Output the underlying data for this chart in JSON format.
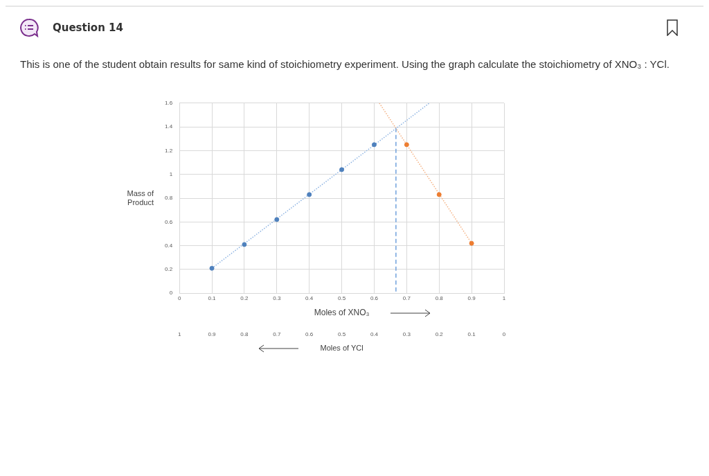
{
  "chart_data": {
    "type": "scatter",
    "title": "Question 14",
    "subtitle": "This is one of the student obtain results for same kind of stoichiometry experiment. Using the graph calculate the stoichiometry of XNO₃ : YCl.",
    "xlabel": "Moles of XNO₃",
    "x2label": "Moles of YCl",
    "ylabel": "Mass of Product",
    "xlim": [
      0,
      1
    ],
    "xticks": [
      0,
      0.1,
      0.2,
      0.3,
      0.4,
      0.5,
      0.6,
      0.7,
      0.8,
      0.9,
      1
    ],
    "x2lim": [
      1,
      0
    ],
    "x2ticks": [
      1,
      0.9,
      0.8,
      0.7,
      0.6,
      0.5,
      0.4,
      0.3,
      0.2,
      0.1,
      0
    ],
    "ylim": [
      0,
      1.6
    ],
    "yticks": [
      0,
      0.2,
      0.4,
      0.6,
      0.8,
      1,
      1.2,
      1.4,
      1.6
    ],
    "grid": true,
    "legend": false,
    "series": [
      {
        "type": "scatter",
        "color": "#4f81bd",
        "marker": "circle",
        "x": [
          0.1,
          0.2,
          0.3,
          0.4,
          0.5,
          0.6
        ],
        "values": [
          0.21,
          0.41,
          0.62,
          0.83,
          1.04,
          1.25
        ]
      },
      {
        "type": "scatter",
        "color": "#ed7d31",
        "marker": "circle",
        "x": [
          0.7,
          0.8,
          0.9
        ],
        "values": [
          1.25,
          0.83,
          0.42
        ]
      },
      {
        "type": "line",
        "color": "#8db3e2",
        "line_style": "dotted",
        "marker": "none",
        "x": [
          0.1,
          0.77
        ],
        "values": [
          0.21,
          1.6
        ]
      },
      {
        "type": "line",
        "color": "#f4b183",
        "line_style": "dotted",
        "marker": "none",
        "x": [
          0.616,
          0.9
        ],
        "values": [
          1.6,
          0.42
        ]
      },
      {
        "type": "line",
        "color": "#6fa0dc",
        "line_style": "dashed",
        "marker": "none",
        "x": [
          0.667,
          0.667
        ],
        "values": [
          1.39,
          0
        ]
      }
    ]
  }
}
